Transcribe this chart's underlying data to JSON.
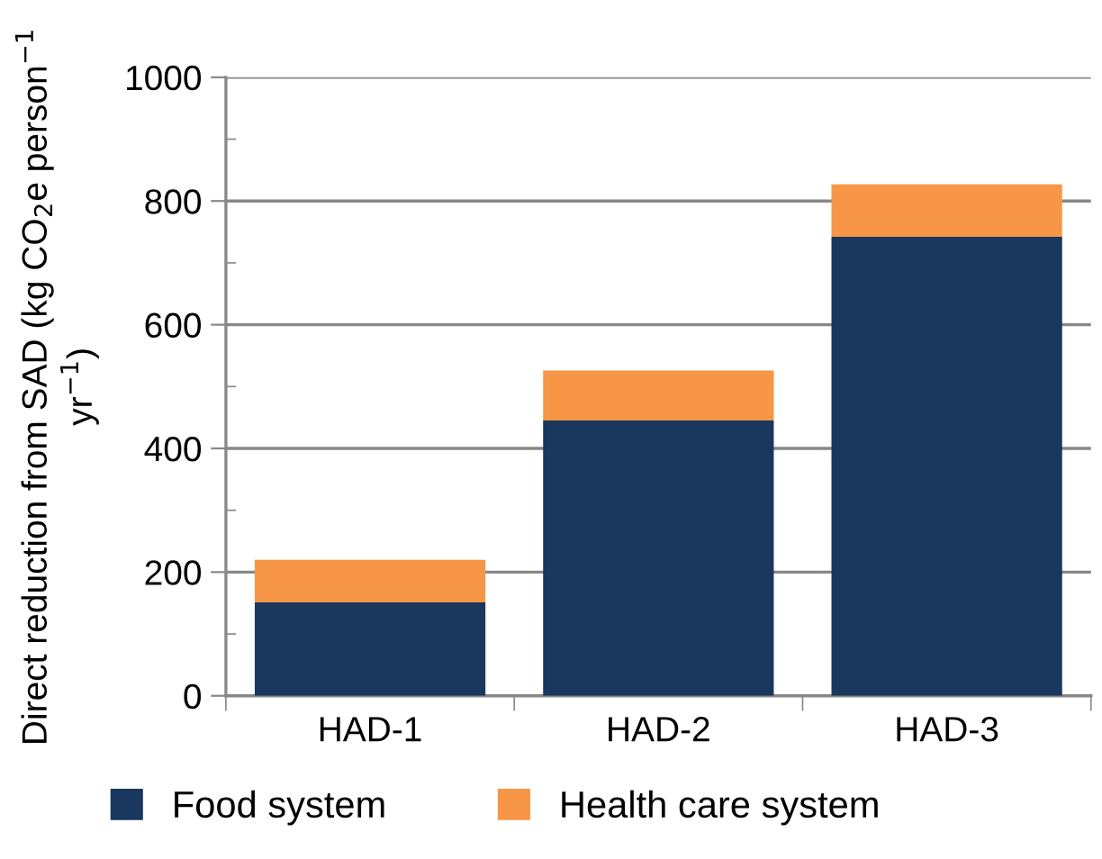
{
  "chart_data": {
    "type": "bar",
    "stacked": true,
    "ylabel": "Direct reduction from SAD (kg CO$_{2}$e person$^{−1}$ yr$^{−1}$)",
    "categories": [
      "HAD-1",
      "HAD-2",
      "HAD-3"
    ],
    "series": [
      {
        "name": "Food system",
        "color": "#1a375e",
        "values": [
          151,
          445,
          742
        ]
      },
      {
        "name": "Health care system",
        "color": "#f79646",
        "values": [
          69,
          81,
          85
        ]
      }
    ],
    "ylim": [
      0,
      1000
    ],
    "yticks": [
      0,
      {
        "value": 100,
        "label": null
      },
      200,
      {
        "value": 300,
        "label": null
      },
      400,
      {
        "value": 500,
        "label": null
      },
      600,
      {
        "value": 700,
        "label": null
      },
      800,
      {
        "value": 900,
        "label": null
      },
      1000
    ],
    "grid": "y",
    "legend": "bottom"
  }
}
